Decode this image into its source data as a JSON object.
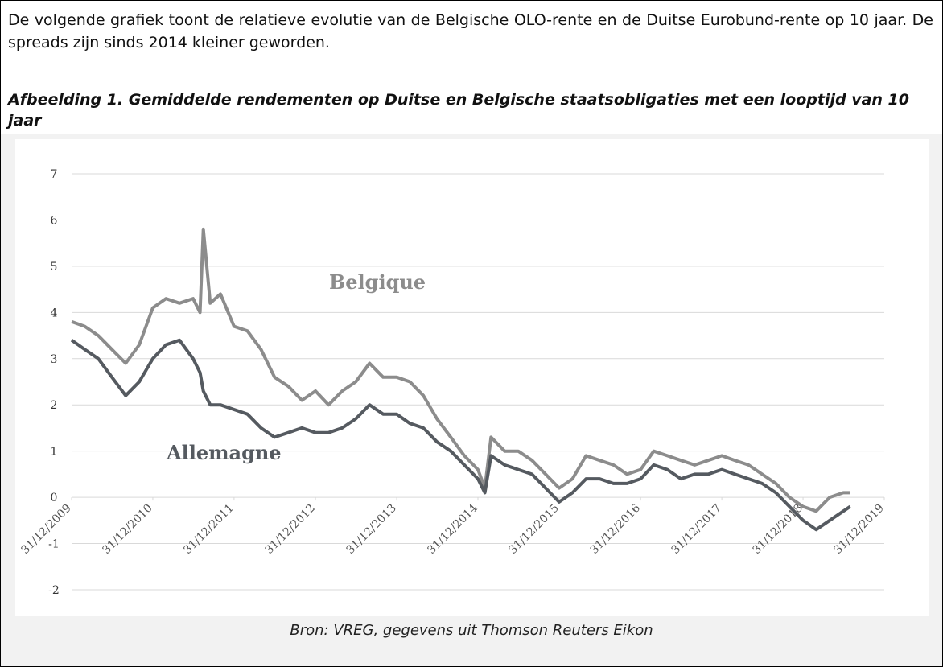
{
  "paragraph": "De volgende grafiek toont de relatieve evolutie van de Belgische OLO-rente en de Duitse Eurobund-rente op 10 jaar. De spreads zijn sinds 2014 kleiner geworden.",
  "figure_caption": "Afbeelding 1. Gemiddelde rendementen op Duitse en Belgische staatsobligaties met een looptijd van 10 jaar",
  "source": "Bron: VREG, gegevens uit Thomson Reuters Eikon",
  "chart_data": {
    "type": "line",
    "x": [
      "2009-12-31",
      "2010-02-28",
      "2010-04-30",
      "2010-06-30",
      "2010-08-31",
      "2010-10-31",
      "2010-12-31",
      "2011-02-28",
      "2011-04-30",
      "2011-06-30",
      "2011-07-31",
      "2011-08-15",
      "2011-09-15",
      "2011-10-31",
      "2011-12-31",
      "2012-02-29",
      "2012-04-30",
      "2012-06-30",
      "2012-08-31",
      "2012-10-31",
      "2012-12-31",
      "2013-02-28",
      "2013-04-30",
      "2013-06-30",
      "2013-08-31",
      "2013-10-31",
      "2013-12-31",
      "2014-02-28",
      "2014-04-30",
      "2014-06-30",
      "2014-08-31",
      "2014-10-31",
      "2014-12-31",
      "2015-01-31",
      "2015-02-28",
      "2015-04-30",
      "2015-06-30",
      "2015-08-31",
      "2015-10-31",
      "2015-12-31",
      "2016-02-29",
      "2016-04-30",
      "2016-06-30",
      "2016-08-31",
      "2016-10-31",
      "2016-12-31",
      "2017-02-28",
      "2017-04-30",
      "2017-06-30",
      "2017-08-31",
      "2017-10-31",
      "2017-12-31",
      "2018-02-28",
      "2018-04-30",
      "2018-06-30",
      "2018-08-31",
      "2018-10-31",
      "2018-12-31",
      "2019-02-28",
      "2019-04-30",
      "2019-06-30",
      "2019-07-31"
    ],
    "series": [
      {
        "name": "Belgique",
        "color": "#8c8c8c",
        "values": [
          3.8,
          3.7,
          3.5,
          3.2,
          2.9,
          3.3,
          4.1,
          4.3,
          4.2,
          4.3,
          4.0,
          5.8,
          4.2,
          4.4,
          3.7,
          3.6,
          3.2,
          2.6,
          2.4,
          2.1,
          2.3,
          2.0,
          2.3,
          2.5,
          2.9,
          2.6,
          2.6,
          2.5,
          2.2,
          1.7,
          1.3,
          0.9,
          0.6,
          0.2,
          1.3,
          1.0,
          1.0,
          0.8,
          0.5,
          0.2,
          0.4,
          0.9,
          0.8,
          0.7,
          0.5,
          0.6,
          1.0,
          0.9,
          0.8,
          0.7,
          0.8,
          0.9,
          0.8,
          0.7,
          0.5,
          0.3,
          0.0,
          -0.2,
          -0.3,
          0.0,
          0.1,
          0.1
        ]
      },
      {
        "name": "Allemagne",
        "color": "#555a60",
        "values": [
          3.4,
          3.2,
          3.0,
          2.6,
          2.2,
          2.5,
          3.0,
          3.3,
          3.4,
          3.0,
          2.7,
          2.3,
          2.0,
          2.0,
          1.9,
          1.8,
          1.5,
          1.3,
          1.4,
          1.5,
          1.4,
          1.4,
          1.5,
          1.7,
          2.0,
          1.8,
          1.8,
          1.6,
          1.5,
          1.2,
          1.0,
          0.7,
          0.4,
          0.1,
          0.9,
          0.7,
          0.6,
          0.5,
          0.2,
          -0.1,
          0.1,
          0.4,
          0.4,
          0.3,
          0.3,
          0.4,
          0.7,
          0.6,
          0.4,
          0.5,
          0.5,
          0.6,
          0.5,
          0.4,
          0.3,
          0.1,
          -0.2,
          -0.5,
          -0.7,
          -0.5,
          -0.3,
          -0.2
        ]
      }
    ],
    "xlim": [
      "2009-12-31",
      "2019-12-31"
    ],
    "xticks": [
      {
        "value": "2009-12-31",
        "label": "31/12/2009"
      },
      {
        "value": "2010-12-31",
        "label": "31/12/2010"
      },
      {
        "value": "2011-12-31",
        "label": "31/12/2011"
      },
      {
        "value": "2012-12-31",
        "label": "31/12/2012"
      },
      {
        "value": "2013-12-31",
        "label": "31/12/2013"
      },
      {
        "value": "2014-12-31",
        "label": "31/12/2014"
      },
      {
        "value": "2015-12-31",
        "label": "31/12/2015"
      },
      {
        "value": "2016-12-31",
        "label": "31/12/2016"
      },
      {
        "value": "2017-12-31",
        "label": "31/12/2017"
      },
      {
        "value": "2018-12-31",
        "label": "31/12/2018"
      },
      {
        "value": "2019-12-31",
        "label": "31/12/2019"
      }
    ],
    "ylim": [
      -2,
      7
    ],
    "yticks": [
      -2,
      -1,
      0,
      1,
      2,
      3,
      4,
      5,
      6,
      7
    ],
    "grid": true
  }
}
